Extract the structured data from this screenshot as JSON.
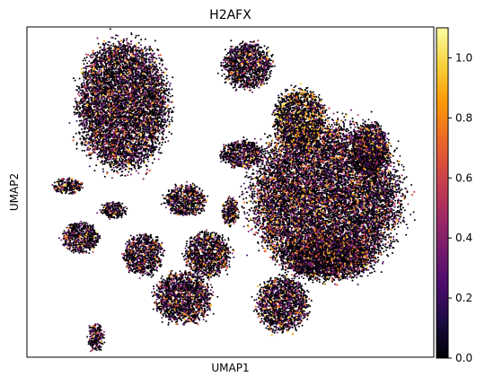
{
  "chart_data": {
    "type": "scatter",
    "title": "H2AFX",
    "xlabel": "UMAP1",
    "ylabel": "UMAP2",
    "grid": false,
    "colormap": "inferno",
    "background_color": "#000004",
    "colorbar": {
      "min": 0.0,
      "max": 1.1,
      "ticks": [
        0.0,
        0.2,
        0.4,
        0.6,
        0.8,
        1.0
      ],
      "tick_labels": [
        "0.0",
        "0.2",
        "0.4",
        "0.6",
        "0.8",
        "1.0"
      ],
      "colors": [
        "#000004",
        "#1b0c41",
        "#4a0c6b",
        "#781c6d",
        "#a52c60",
        "#cf4446",
        "#ed6925",
        "#fb9b06",
        "#f7d13d",
        "#fcffa4"
      ]
    },
    "clusters": [
      {
        "name": "c1",
        "cx": 0.236,
        "cy": 0.238,
        "rx": 0.108,
        "ry": 0.185,
        "level": 0.18
      },
      {
        "name": "c2",
        "cx": 0.543,
        "cy": 0.118,
        "rx": 0.058,
        "ry": 0.068,
        "level": 0.15
      },
      {
        "name": "c3",
        "cx": 0.53,
        "cy": 0.385,
        "rx": 0.052,
        "ry": 0.04,
        "level": 0.12
      },
      {
        "name": "c4",
        "cx": 0.1,
        "cy": 0.483,
        "rx": 0.035,
        "ry": 0.022,
        "level": 0.3
      },
      {
        "name": "c5",
        "cx": 0.212,
        "cy": 0.555,
        "rx": 0.03,
        "ry": 0.025,
        "level": 0.12
      },
      {
        "name": "c6",
        "cx": 0.39,
        "cy": 0.525,
        "rx": 0.048,
        "ry": 0.045,
        "level": 0.18
      },
      {
        "name": "c7",
        "cx": 0.5,
        "cy": 0.56,
        "rx": 0.02,
        "ry": 0.04,
        "level": 0.35
      },
      {
        "name": "c8",
        "cx": 0.132,
        "cy": 0.64,
        "rx": 0.045,
        "ry": 0.045,
        "level": 0.2
      },
      {
        "name": "c9",
        "cx": 0.285,
        "cy": 0.69,
        "rx": 0.045,
        "ry": 0.06,
        "level": 0.25
      },
      {
        "name": "c10",
        "cx": 0.445,
        "cy": 0.69,
        "rx": 0.052,
        "ry": 0.065,
        "level": 0.15
      },
      {
        "name": "c11",
        "cx": 0.385,
        "cy": 0.82,
        "rx": 0.068,
        "ry": 0.075,
        "level": 0.25
      },
      {
        "name": "c12",
        "cx": 0.628,
        "cy": 0.84,
        "rx": 0.06,
        "ry": 0.08,
        "level": 0.12
      },
      {
        "name": "c13",
        "cx": 0.845,
        "cy": 0.37,
        "rx": 0.043,
        "ry": 0.08,
        "level": 0.15
      },
      {
        "name": "c14",
        "cx": 0.735,
        "cy": 0.52,
        "rx": 0.175,
        "ry": 0.22,
        "level": 0.25
      },
      {
        "name": "c15",
        "cx": 0.67,
        "cy": 0.28,
        "rx": 0.06,
        "ry": 0.09,
        "level": 0.65
      },
      {
        "name": "c16",
        "cx": 0.74,
        "cy": 0.7,
        "rx": 0.11,
        "ry": 0.06,
        "level": 0.3
      },
      {
        "name": "c17",
        "cx": 0.17,
        "cy": 0.94,
        "rx": 0.018,
        "ry": 0.04,
        "level": 0.2
      }
    ]
  }
}
